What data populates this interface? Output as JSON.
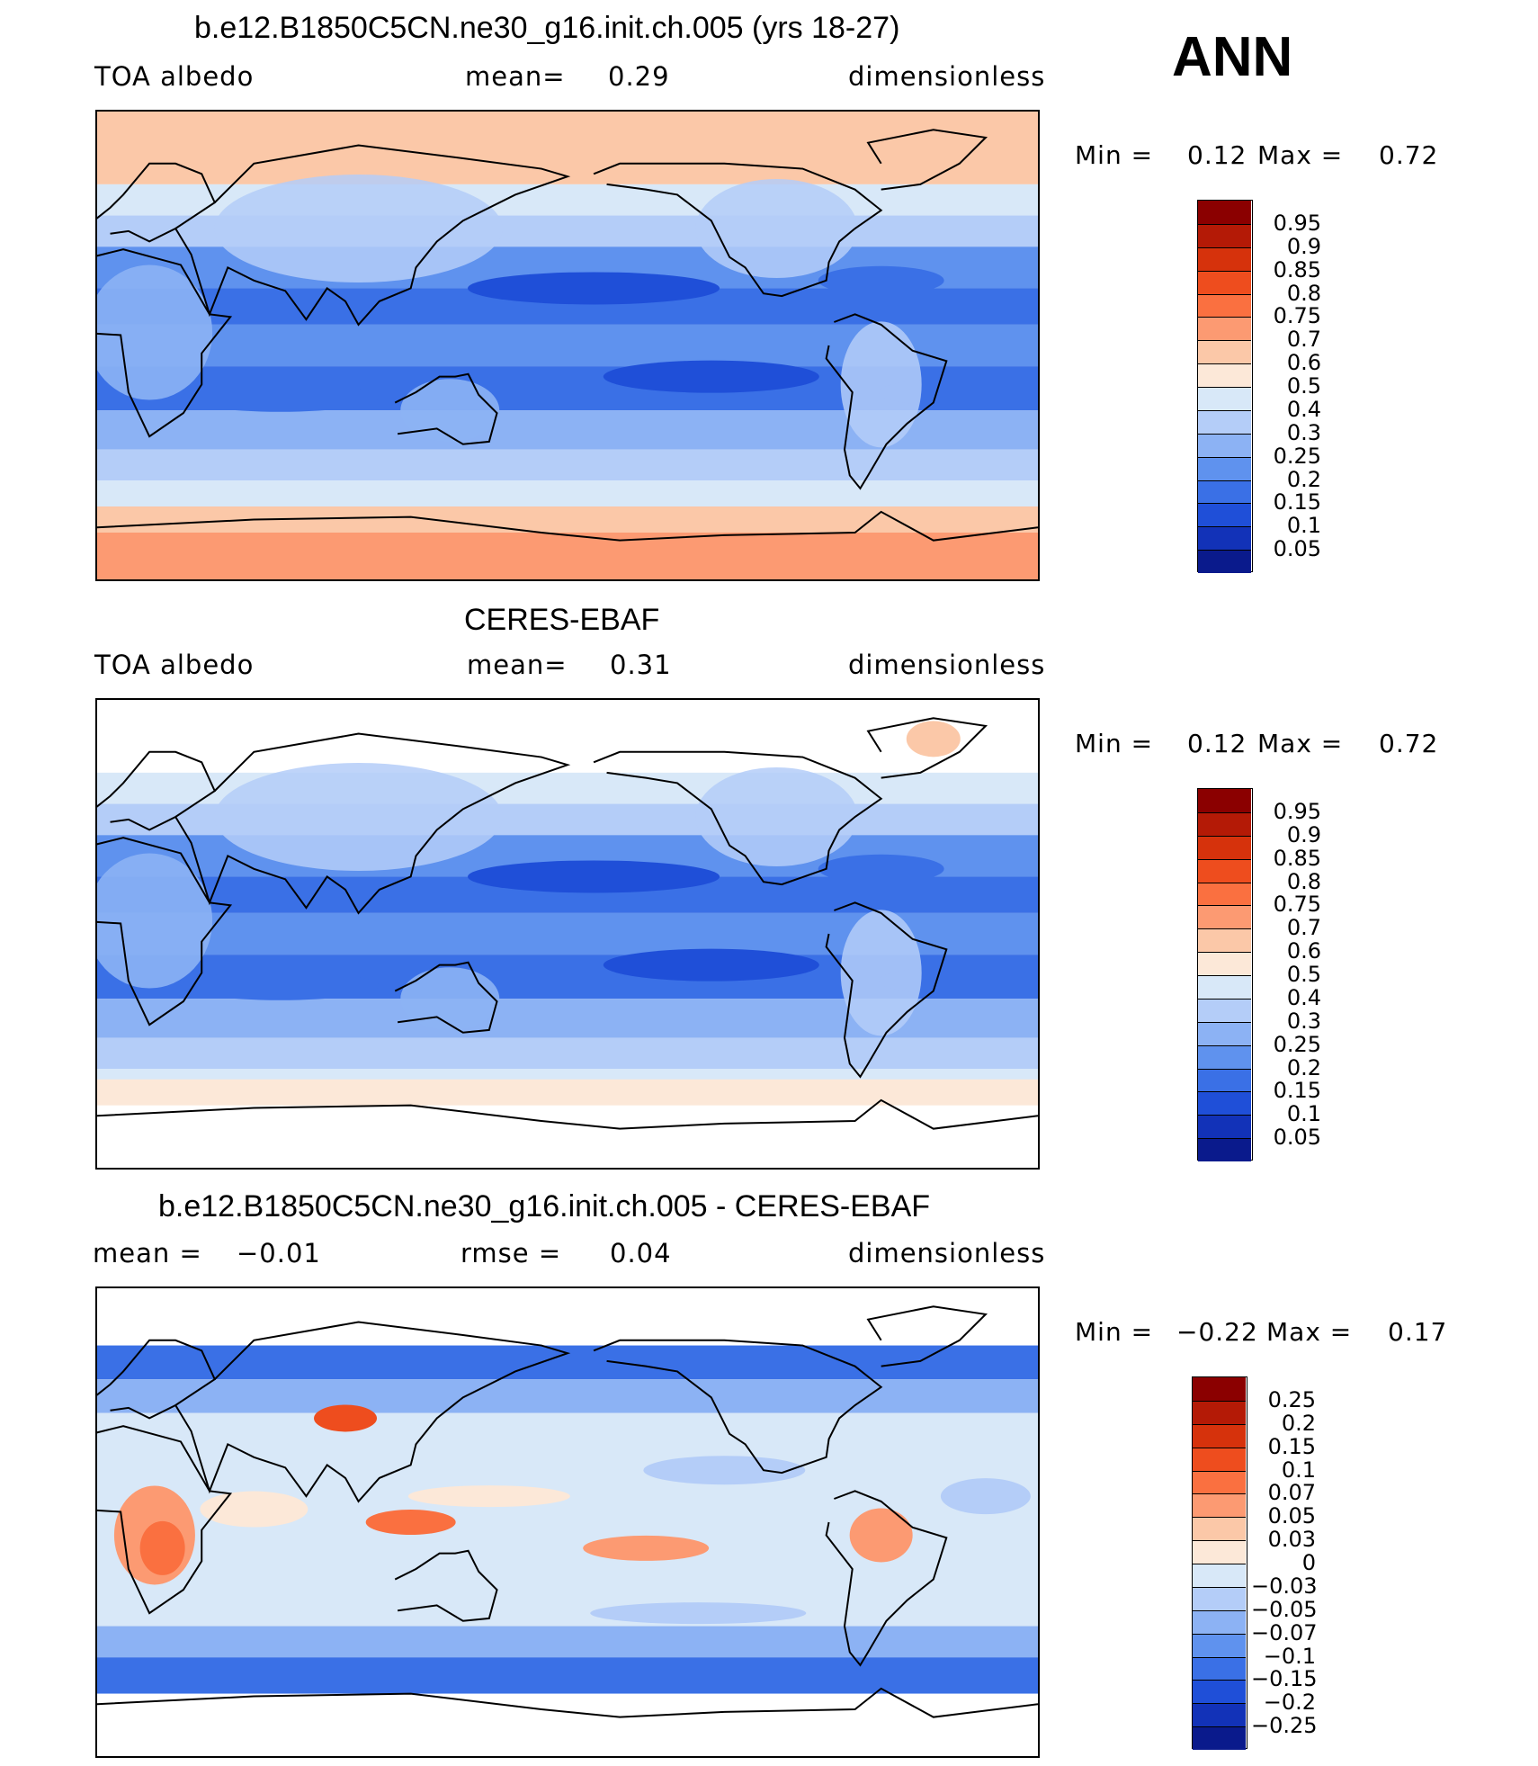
{
  "season": "ANN",
  "panels": [
    {
      "title": "b.e12.B1850C5CN.ne30_g16.init.ch.005 (yrs 18-27)",
      "left": "TOA  albedo",
      "middle_label": "mean=",
      "middle_value": "0.29",
      "right": "dimensionless",
      "min_label": "Min  =",
      "min_value": "0.12",
      "max_label": "Max  =",
      "max_value": "0.72",
      "field": "model"
    },
    {
      "title": "CERES-EBAF",
      "left": "TOA  albedo",
      "middle_label": "mean=",
      "middle_value": "0.31",
      "right": "dimensionless",
      "min_label": "Min  =",
      "min_value": "0.12",
      "max_label": "Max  =",
      "max_value": "0.72",
      "field": "obs"
    },
    {
      "title": "b.e12.B1850C5CN.ne30_g16.init.ch.005 - CERES-EBAF",
      "left_label": "mean  =",
      "left_value": "−0.01",
      "middle_label": "rmse  =",
      "middle_value": "0.04",
      "right": "dimensionless",
      "min_label": "Min  =",
      "min_value": "−0.22",
      "max_label": "Max  =",
      "max_value": "0.17",
      "field": "diff"
    }
  ],
  "colorbars": {
    "absolute": {
      "labels": [
        "0.95",
        "0.9",
        "0.85",
        "0.8",
        "0.75",
        "0.7",
        "0.6",
        "0.5",
        "0.4",
        "0.3",
        "0.25",
        "0.2",
        "0.15",
        "0.1",
        "0.05"
      ],
      "colors": [
        "#8b0000",
        "#b41a06",
        "#d6320c",
        "#ee4d1e",
        "#fa7040",
        "#fc9a72",
        "#fbc8a8",
        "#fce8d8",
        "#d8e8f8",
        "#b4cdf8",
        "#8cb2f4",
        "#5f92ee",
        "#3a70e6",
        "#1f4fd8",
        "#1232b8",
        "#0a1a8c"
      ]
    },
    "difference": {
      "labels": [
        "0.25",
        "0.2",
        "0.15",
        "0.1",
        "0.07",
        "0.05",
        "0.03",
        "0",
        "−0.03",
        "−0.05",
        "−0.07",
        "−0.1",
        "−0.15",
        "−0.2",
        "−0.25"
      ],
      "colors": [
        "#8b0000",
        "#b41a06",
        "#d6320c",
        "#ee4d1e",
        "#fa7040",
        "#fc9a72",
        "#fbc8a8",
        "#fce8d8",
        "#d8e8f8",
        "#b4cdf8",
        "#8cb2f4",
        "#5f92ee",
        "#3a70e6",
        "#1f4fd8",
        "#1232b8",
        "#0a1a8c"
      ]
    }
  }
}
